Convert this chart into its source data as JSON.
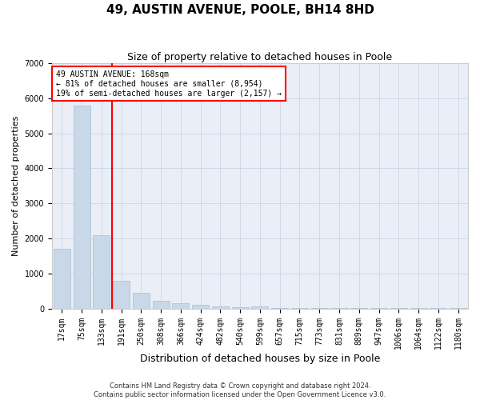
{
  "title": "49, AUSTIN AVENUE, POOLE, BH14 8HD",
  "subtitle": "Size of property relative to detached houses in Poole",
  "xlabel": "Distribution of detached houses by size in Poole",
  "ylabel": "Number of detached properties",
  "bar_color": "#c8d8e8",
  "bar_edgecolor": "#a8bece",
  "categories": [
    "17sqm",
    "75sqm",
    "133sqm",
    "191sqm",
    "250sqm",
    "308sqm",
    "366sqm",
    "424sqm",
    "482sqm",
    "540sqm",
    "599sqm",
    "657sqm",
    "715sqm",
    "773sqm",
    "831sqm",
    "889sqm",
    "947sqm",
    "1006sqm",
    "1064sqm",
    "1122sqm",
    "1180sqm"
  ],
  "values": [
    1700,
    5800,
    2100,
    800,
    450,
    220,
    150,
    100,
    65,
    35,
    70,
    10,
    10,
    5,
    5,
    5,
    5,
    5,
    5,
    5,
    5
  ],
  "ylim": [
    0,
    7000
  ],
  "yticks": [
    0,
    1000,
    2000,
    3000,
    4000,
    5000,
    6000,
    7000
  ],
  "red_line_x": 2.55,
  "annotation_title": "49 AUSTIN AVENUE: 168sqm",
  "annotation_line1": "← 81% of detached houses are smaller (8,954)",
  "annotation_line2": "19% of semi-detached houses are larger (2,157) →",
  "footer_line1": "Contains HM Land Registry data © Crown copyright and database right 2024.",
  "footer_line2": "Contains public sector information licensed under the Open Government Licence v3.0.",
  "grid_color": "#d0d8e8",
  "background_color": "#eaeff7",
  "title_fontsize": 11,
  "subtitle_fontsize": 9,
  "xlabel_fontsize": 9,
  "ylabel_fontsize": 8,
  "tick_fontsize": 7,
  "annotation_fontsize": 7,
  "footer_fontsize": 6
}
